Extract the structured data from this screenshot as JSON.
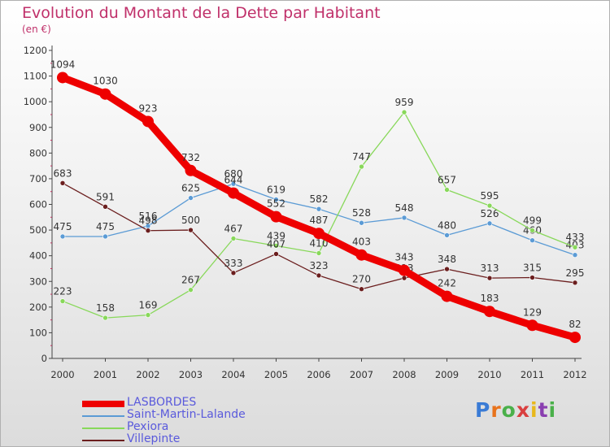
{
  "title": "Evolution du Montant de la Dette par Habitant",
  "subtitle": "(en €)",
  "brand": "Proxiti",
  "brand_colors": [
    "#3a7bd5",
    "#e8731c",
    "#4ab04a",
    "#d93f3f",
    "#e8b81c",
    "#8a3fb0",
    "#4ab04a"
  ],
  "chart_data": {
    "type": "line",
    "x": [
      "2000",
      "2001",
      "2002",
      "2003",
      "2004",
      "2005",
      "2006",
      "2007",
      "2008",
      "2009",
      "2010",
      "2011",
      "2012"
    ],
    "ylim": [
      0,
      1200
    ],
    "yticks": [
      0,
      100,
      200,
      300,
      400,
      500,
      600,
      700,
      800,
      900,
      1000,
      1100,
      1200
    ],
    "grid": false,
    "legend_position": "bottom-left",
    "series": [
      {
        "name": "LASBORDES",
        "color": "#ee0000",
        "emphasis": true,
        "values": [
          1094,
          1030,
          923,
          732,
          644,
          552,
          487,
          403,
          343,
          242,
          183,
          129,
          82
        ]
      },
      {
        "name": "Saint-Martin-Lalande",
        "color": "#5b9bd5",
        "emphasis": false,
        "values": [
          475,
          475,
          516,
          625,
          680,
          619,
          582,
          528,
          548,
          480,
          526,
          460,
          403
        ]
      },
      {
        "name": "Pexiora",
        "color": "#88d85a",
        "emphasis": false,
        "values": [
          223,
          158,
          169,
          267,
          467,
          439,
          410,
          747,
          959,
          657,
          595,
          499,
          433
        ]
      },
      {
        "name": "Villepinte",
        "color": "#6b1e1e",
        "emphasis": false,
        "values": [
          683,
          591,
          498,
          500,
          333,
          407,
          323,
          270,
          313,
          348,
          313,
          315,
          295
        ]
      }
    ]
  }
}
